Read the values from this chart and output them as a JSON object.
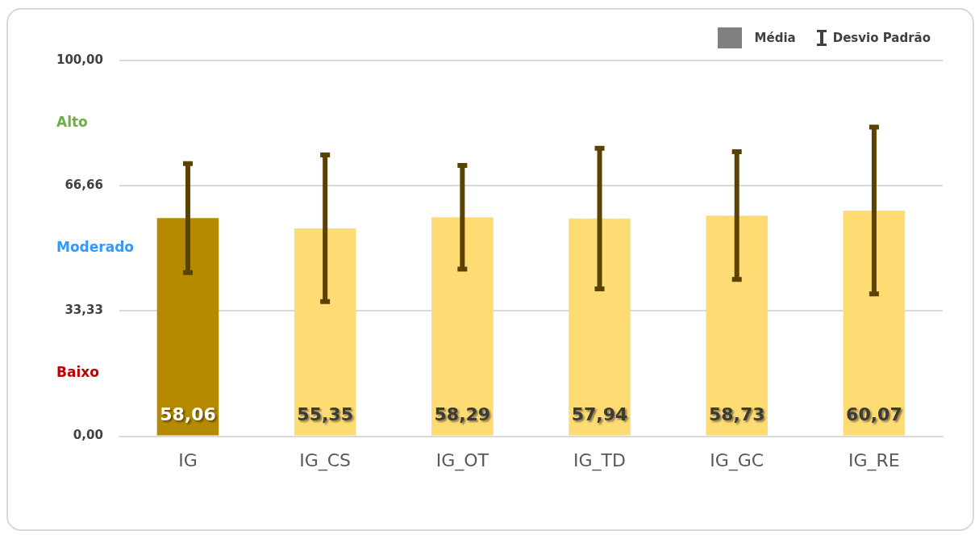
{
  "chart_data": {
    "type": "bar",
    "categories": [
      "IG",
      "IG_CS",
      "IG_OT",
      "IG_TD",
      "IG_GC",
      "IG_RE"
    ],
    "series": [
      {
        "name": "Média",
        "color": "#808080",
        "colors": [
          "#b58900",
          "#ffdc73",
          "#ffdc73",
          "#ffdc73",
          "#ffdc73",
          "#ffdc73"
        ],
        "values": [
          58.06,
          55.35,
          58.29,
          57.94,
          58.73,
          60.07
        ],
        "value_labels": [
          "58,06",
          "55,35",
          "58,29",
          "57,94",
          "58,73",
          "60,07"
        ],
        "errors": [
          14.5,
          19.5,
          13.8,
          18.7,
          17,
          22.2
        ]
      }
    ],
    "ylim": [
      0,
      100
    ],
    "yticks": [
      {
        "value": 0,
        "label": "0,00"
      },
      {
        "value": 33.33,
        "label": "33,33"
      },
      {
        "value": 66.66,
        "label": "66,66"
      },
      {
        "value": 100,
        "label": "100,00"
      }
    ],
    "annotations": [
      "Desvio Padrão",
      "Alto",
      "Moderado",
      "Baixo"
    ],
    "grid": "y",
    "legend": "top right"
  }
}
